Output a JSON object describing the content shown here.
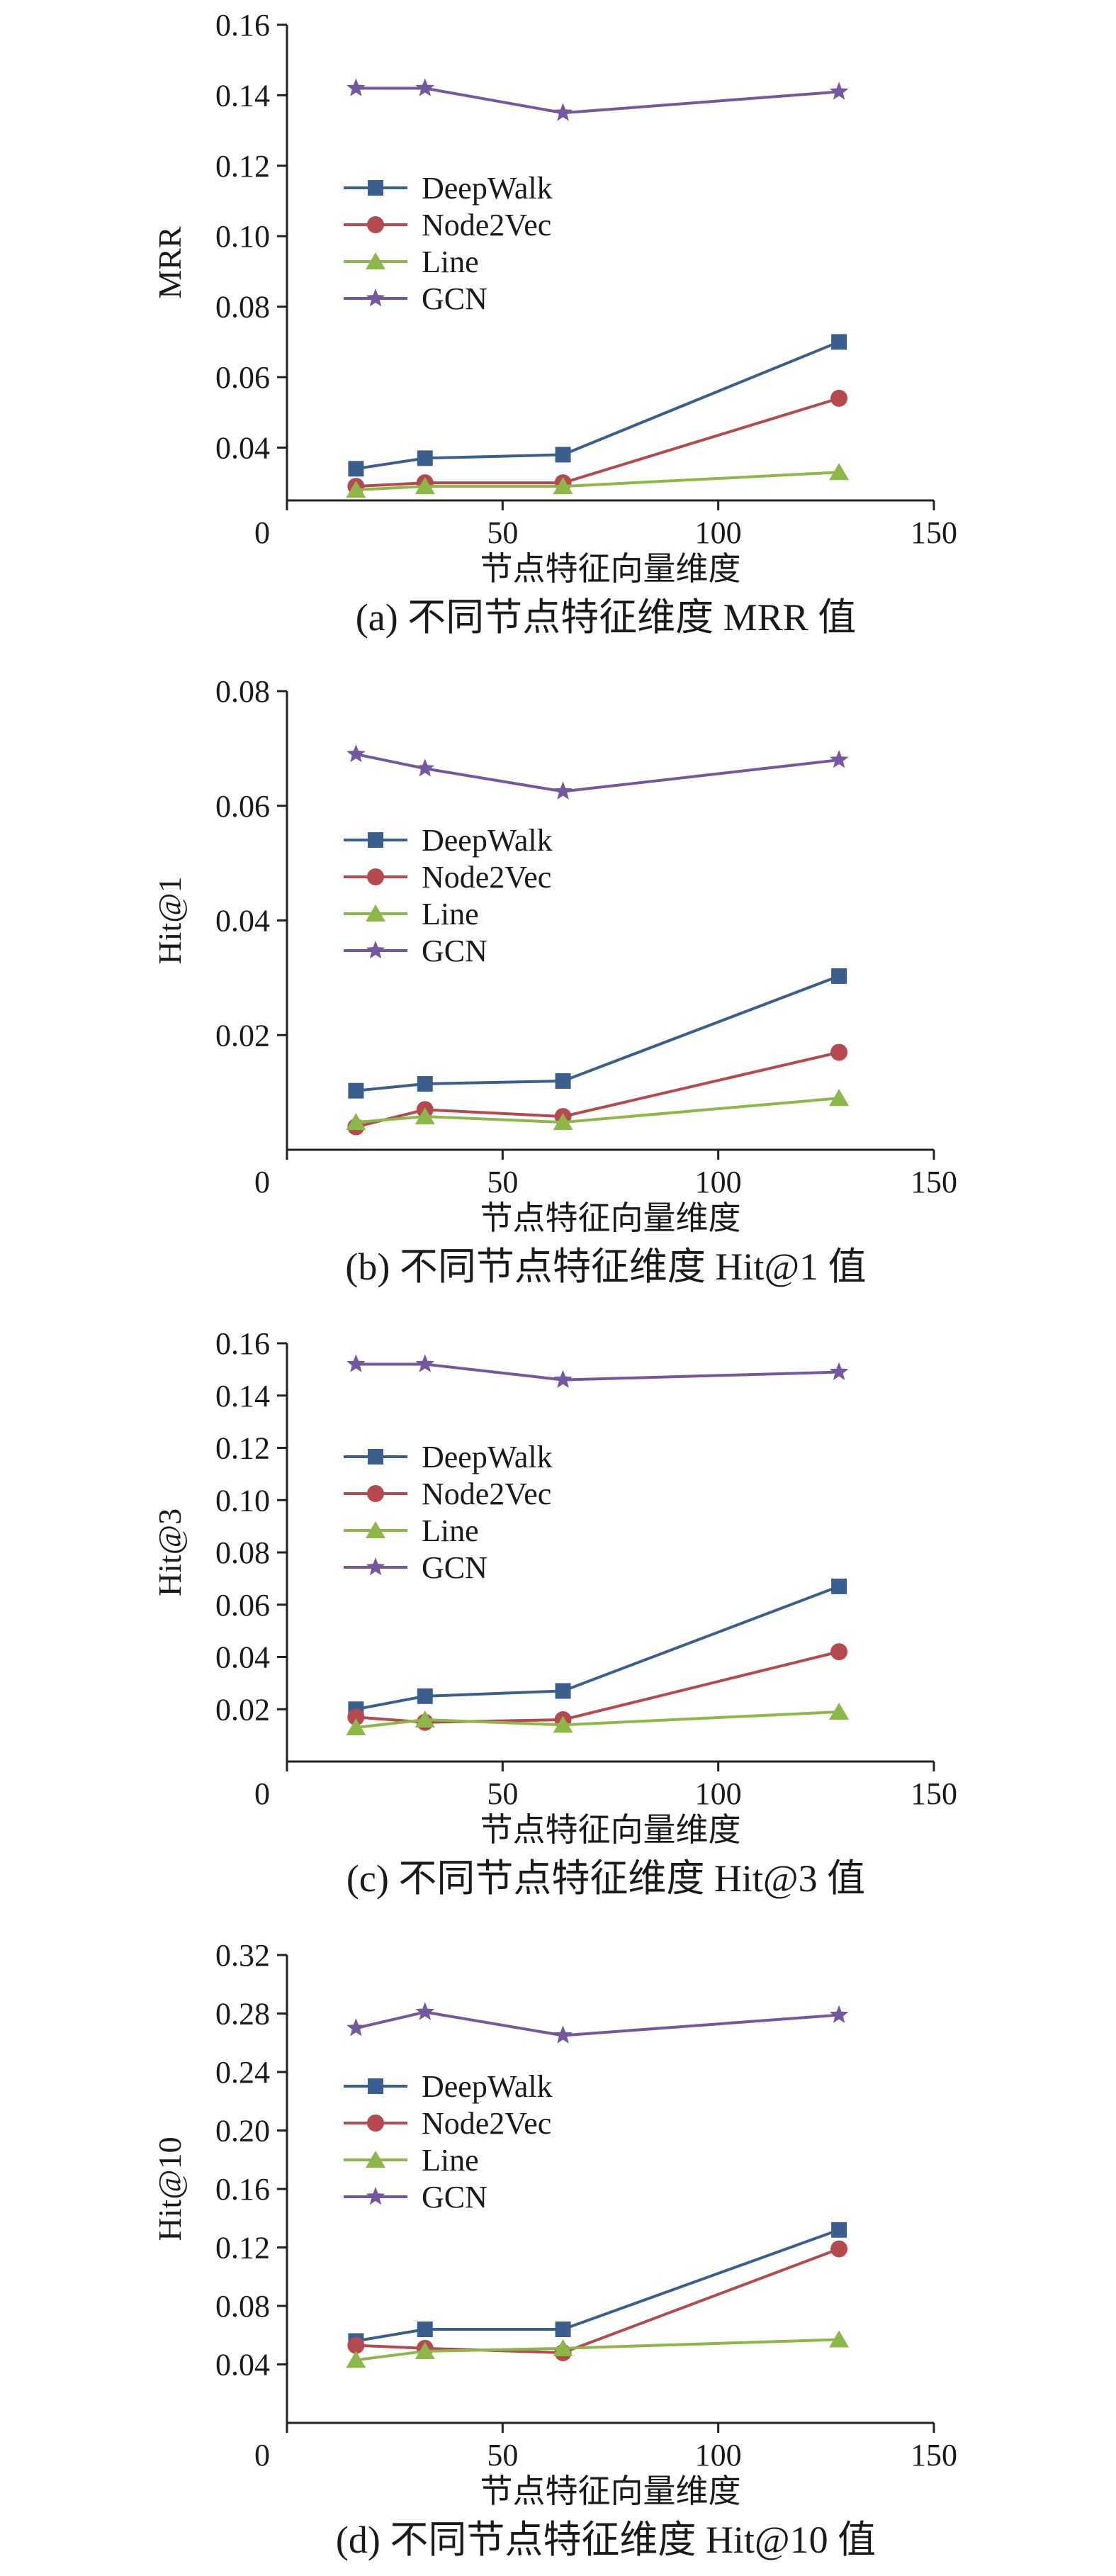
{
  "chart_data": [
    {
      "type": "line",
      "ylabel": "MRR",
      "xlabel": "节点特征向量维度",
      "caption": "(a) 不同节点特征维度 MRR 值",
      "xlim": [
        0,
        150
      ],
      "ylim": [
        0.025,
        0.16
      ],
      "xticks": [
        0,
        50,
        100,
        150
      ],
      "yticks": [
        0.04,
        0.06,
        0.08,
        0.1,
        0.12,
        0.14,
        0.16
      ],
      "ytick_labels": [
        "0.04",
        "0.06",
        "0.08",
        "0.10",
        "0.12",
        "0.14",
        "0.16"
      ],
      "x": [
        16,
        32,
        64,
        128
      ],
      "series": [
        {
          "name": "DeepWalk",
          "values": [
            0.034,
            0.037,
            0.038,
            0.07
          ]
        },
        {
          "name": "Node2Vec",
          "values": [
            0.029,
            0.03,
            0.03,
            0.054
          ]
        },
        {
          "name": "Line",
          "values": [
            0.028,
            0.029,
            0.029,
            0.033
          ]
        },
        {
          "name": "GCN",
          "values": [
            0.142,
            0.142,
            0.135,
            0.141
          ]
        }
      ]
    },
    {
      "type": "line",
      "ylabel": "Hit@1",
      "xlabel": "节点特征向量维度",
      "caption": "(b) 不同节点特征维度 Hit@1 值",
      "xlim": [
        0,
        150
      ],
      "ylim": [
        0,
        0.08
      ],
      "xticks": [
        0,
        50,
        100,
        150
      ],
      "yticks": [
        0.02,
        0.04,
        0.06,
        0.08
      ],
      "ytick_labels": [
        "0.02",
        "0.04",
        "0.06",
        "0.08"
      ],
      "x": [
        16,
        32,
        64,
        128
      ],
      "series": [
        {
          "name": "DeepWalk",
          "values": [
            0.0103,
            0.0115,
            0.012,
            0.0303
          ]
        },
        {
          "name": "Node2Vec",
          "values": [
            0.004,
            0.007,
            0.0058,
            0.017
          ]
        },
        {
          "name": "Line",
          "values": [
            0.0048,
            0.0058,
            0.0048,
            0.009
          ]
        },
        {
          "name": "GCN",
          "values": [
            0.069,
            0.0665,
            0.0625,
            0.068
          ]
        }
      ]
    },
    {
      "type": "line",
      "ylabel": "Hit@3",
      "xlabel": "节点特征向量维度",
      "caption": "(c) 不同节点特征维度 Hit@3 值",
      "xlim": [
        0,
        150
      ],
      "ylim": [
        0,
        0.16
      ],
      "xticks": [
        0,
        50,
        100,
        150
      ],
      "yticks": [
        0.02,
        0.04,
        0.06,
        0.08,
        0.1,
        0.12,
        0.14,
        0.16
      ],
      "ytick_labels": [
        "0.02",
        "0.04",
        "0.06",
        "0.08",
        "0.10",
        "0.12",
        "0.14",
        "0.16"
      ],
      "x": [
        16,
        32,
        64,
        128
      ],
      "series": [
        {
          "name": "DeepWalk",
          "values": [
            0.02,
            0.025,
            0.027,
            0.067
          ]
        },
        {
          "name": "Node2Vec",
          "values": [
            0.017,
            0.015,
            0.016,
            0.042
          ]
        },
        {
          "name": "Line",
          "values": [
            0.013,
            0.016,
            0.014,
            0.019
          ]
        },
        {
          "name": "GCN",
          "values": [
            0.152,
            0.152,
            0.146,
            0.149
          ]
        }
      ]
    },
    {
      "type": "line",
      "ylabel": "Hit@10",
      "xlabel": "节点特征向量维度",
      "caption": "(d) 不同节点特征维度 Hit@10 值",
      "xlim": [
        0,
        150
      ],
      "ylim": [
        0,
        0.32
      ],
      "xticks": [
        0,
        50,
        100,
        150
      ],
      "yticks": [
        0.04,
        0.08,
        0.12,
        0.16,
        0.2,
        0.24,
        0.28,
        0.32
      ],
      "ytick_labels": [
        "0.04",
        "0.08",
        "0.12",
        "0.16",
        "0.20",
        "0.24",
        "0.28",
        "0.32"
      ],
      "x": [
        16,
        32,
        64,
        128
      ],
      "series": [
        {
          "name": "DeepWalk",
          "values": [
            0.056,
            0.064,
            0.064,
            0.132
          ]
        },
        {
          "name": "Node2Vec",
          "values": [
            0.053,
            0.051,
            0.048,
            0.119
          ]
        },
        {
          "name": "Line",
          "values": [
            0.043,
            0.049,
            0.051,
            0.057
          ]
        },
        {
          "name": "GCN",
          "values": [
            0.27,
            0.281,
            0.265,
            0.279
          ]
        }
      ]
    }
  ],
  "series_colors": {
    "DeepWalk": "#3a5f8f",
    "Node2Vec": "#b54a4e",
    "Line": "#8cb84a",
    "GCN": "#7557a0"
  },
  "series_markers": {
    "DeepWalk": "square",
    "Node2Vec": "circle",
    "Line": "triangle",
    "GCN": "star"
  }
}
